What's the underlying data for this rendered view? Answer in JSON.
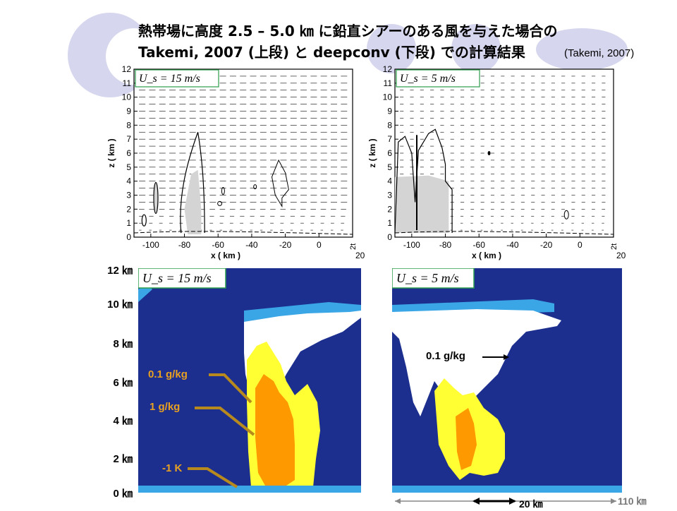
{
  "title": {
    "line1": "熱帯場に高度 2.5 – 5.0 ㎞ に鉛直シアーのある風を与えた場合の",
    "line2": "Takemi, 2007 (上段) と deepconv (下段) での計算結果",
    "citation": "(Takemi, 2007)"
  },
  "colors": {
    "ocean": "#1c2f8f",
    "light_blue": "#3aa6e6",
    "white": "#ffffff",
    "yellow": "#ffff33",
    "orange": "#ff9900",
    "annotation_orange": "#e8a020",
    "arrow_brown": "#b88a1e",
    "panel_border": "#2a9d4a",
    "decoration": "#d6d6ee"
  },
  "chart_data": [
    {
      "type": "contour",
      "panel": "top-left",
      "label": "U_s = 15 m/s",
      "xlabel": "x  ( km )",
      "ylabel": "z  ( km )",
      "xlim": [
        -110,
        20
      ],
      "ylim": [
        0,
        12
      ],
      "x_ticks": [
        "-100",
        "-80",
        "-60",
        "-40",
        "-20",
        "0"
      ],
      "y_ticks": [
        "0",
        "1",
        "2",
        "3",
        "4",
        "5",
        "6",
        "7",
        "8",
        "9",
        "10",
        "11",
        "12"
      ],
      "corner_note": "2t",
      "corner_value": "20",
      "cloud_top_km": 7.5,
      "shading": "gray shaded region near x = -78 to -70 km"
    },
    {
      "type": "contour",
      "panel": "top-right",
      "label": "U_s = 5 m/s",
      "xlabel": "x  ( km )",
      "ylabel": "z  ( km )",
      "xlim": [
        -110,
        20
      ],
      "ylim": [
        0,
        12
      ],
      "x_ticks": [
        "-100",
        "-80",
        "-60",
        "-40",
        "-20",
        "0"
      ],
      "y_ticks": [
        "0",
        "1",
        "2",
        "3",
        "4",
        "5",
        "6",
        "7",
        "8",
        "9",
        "10",
        "11",
        "12"
      ],
      "corner_note": "2t",
      "corner_value": "20",
      "cloud_top_km": 7.5,
      "shading": "gray shaded region near x = -110 to -80 km"
    },
    {
      "type": "heatmap",
      "panel": "bottom-left",
      "label": "U_s = 15 m/s",
      "y_ticks": [
        "0 ㎞",
        "2 ㎞",
        "4 ㎞",
        "6 ㎞",
        "8 ㎞",
        "10 ㎞",
        "12 ㎞"
      ],
      "annotations": [
        "0.1 g/kg",
        "1 g/kg",
        "-1 K"
      ]
    },
    {
      "type": "heatmap",
      "panel": "bottom-right",
      "label": "U_s = 5 m/s",
      "annotations": [
        "0.1 g/kg"
      ],
      "scale_labels": [
        "20 ㎞",
        "110 ㎞"
      ]
    }
  ],
  "axis_labels": {
    "y_left": [
      "12 ㎞",
      "10 ㎞",
      "8 ㎞",
      "6 ㎞",
      "4 ㎞",
      "2 ㎞",
      "0 ㎞"
    ]
  },
  "bottom_left_annotations": {
    "a1": "0.1 g/kg",
    "a2": "1 g/kg",
    "a3": "-1 K"
  },
  "bottom_right_annotations": {
    "a1": "0.1 g/kg"
  },
  "scale": {
    "short": "20 ㎞",
    "long": "110 ㎞"
  }
}
